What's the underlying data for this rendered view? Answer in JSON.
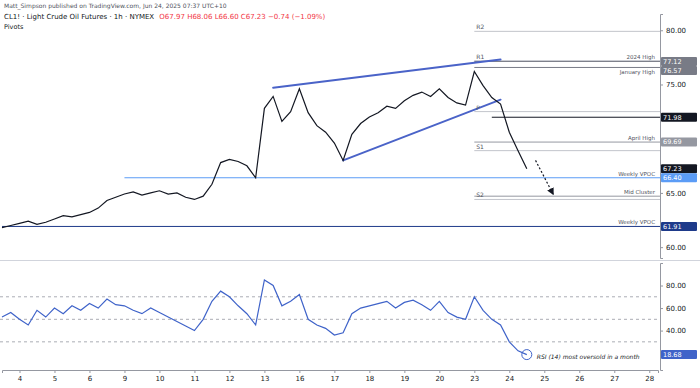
{
  "header": {
    "publisher": "Matt_Simpson published on TradingView.com, Jun 24, 2025 07:37 UTC+10",
    "symbol": "CL1! · Light Crude Oil Futures · 1h · NYMEX",
    "ohlc": "O67.97 H68.06 L66.60 C67.23 −0.74 (−1.09%)",
    "indicator": "Pivots"
  },
  "chart_data": [
    {
      "type": "line",
      "categories": [
        null,
        null,
        "4",
        null,
        null,
        null,
        "5",
        null,
        null,
        null,
        "6",
        null,
        null,
        null,
        "9",
        null,
        null,
        null,
        "10",
        null,
        null,
        null,
        "11",
        null,
        null,
        null,
        "12",
        null,
        null,
        null,
        "13",
        null,
        null,
        null,
        "16",
        null,
        null,
        null,
        "17",
        null,
        null,
        null,
        "18",
        null,
        null,
        null,
        "19",
        null,
        null,
        null,
        "20",
        null,
        null,
        null,
        "23",
        null,
        null,
        null,
        "24",
        null,
        null,
        null,
        "25",
        null,
        null,
        null,
        "26",
        null,
        null,
        null,
        "27",
        null,
        null,
        null,
        "28",
        null
      ],
      "series": [
        {
          "color": "#131722",
          "values": [
            61.8,
            62.0,
            62.2,
            62.4,
            62.1,
            62.3,
            62.6,
            62.9,
            62.8,
            63.0,
            63.2,
            63.6,
            64.3,
            64.6,
            64.9,
            65.1,
            64.8,
            65.0,
            65.2,
            64.9,
            65.0,
            64.6,
            64.4,
            64.7,
            65.8,
            67.8,
            68.1,
            67.9,
            67.5,
            66.4,
            72.8,
            73.9,
            71.6,
            72.5,
            74.6,
            72.4,
            71.2,
            70.6,
            69.6,
            68.0,
            70.4,
            71.4,
            72.0,
            72.4,
            73.0,
            72.8,
            73.5,
            74.0,
            74.3,
            73.9,
            74.6,
            73.8,
            73.3,
            73.1,
            76.2,
            74.9,
            73.8,
            73.2,
            70.6,
            68.9,
            67.23,
            null,
            null,
            null,
            null,
            null,
            null,
            null,
            null,
            null,
            null,
            null,
            null,
            null,
            null,
            null
          ]
        }
      ],
      "ylim": [
        59,
        81.5
      ],
      "yticks": [
        {
          "value": 60,
          "label": "60.00"
        },
        {
          "value": 65,
          "label": "65.00"
        },
        {
          "value": 75,
          "label": "75.00"
        },
        {
          "value": 80,
          "label": "80.00"
        }
      ],
      "tick_labels": "y",
      "grid": false,
      "last_value_label": "67.23",
      "levels": [
        {
          "label": "2024 High",
          "value": 77.12,
          "price_label": "77.12",
          "from": 54,
          "color": "#787b86"
        },
        {
          "label": "January High",
          "value": 76.57,
          "price_label": "76.57",
          "from": 54,
          "color": "#787b86"
        },
        {
          "value": 71.98,
          "price_label": "71.98",
          "from": 56,
          "color": "#131722"
        },
        {
          "label": "April High",
          "value": 69.69,
          "price_label": "69.69",
          "from": 54,
          "color": "#9598a1"
        },
        {
          "label": "Weekly VPOC",
          "value": 66.4,
          "price_label": "66.40",
          "from": 14,
          "color": "#5b9cf6"
        },
        {
          "label": "Mid Cluster",
          "value": 64.7,
          "from": 54,
          "color": "#9598a1"
        },
        {
          "label": "Weekly VPOC",
          "value": 61.91,
          "price_label": "61.91",
          "from": 0,
          "color": "#1e3a8a"
        }
      ],
      "pivots": [
        {
          "label": "R2",
          "value": 79.9,
          "from": 54
        },
        {
          "label": "R1",
          "value": 77.2,
          "from": 54
        },
        {
          "label": "P",
          "value": 72.5,
          "from": 54
        },
        {
          "label": "S1",
          "value": 68.9,
          "from": 54
        },
        {
          "label": "S2",
          "value": 64.4,
          "from": 54
        }
      ],
      "trendlines": [
        {
          "x": [
            31,
            57
          ],
          "y": [
            74.7,
            77.3
          ]
        },
        {
          "x": [
            39,
            57
          ],
          "y": [
            68.0,
            73.6
          ]
        }
      ],
      "arrow": {
        "x": [
          61,
          63
        ],
        "y": [
          68.0,
          64.9
        ]
      }
    },
    {
      "type": "line",
      "categories": [
        null,
        null,
        "4",
        null,
        null,
        null,
        "5",
        null,
        null,
        null,
        "6",
        null,
        null,
        null,
        "9",
        null,
        null,
        null,
        "10",
        null,
        null,
        null,
        "11",
        null,
        null,
        null,
        "12",
        null,
        null,
        null,
        "13",
        null,
        null,
        null,
        "16",
        null,
        null,
        null,
        "17",
        null,
        null,
        null,
        "18",
        null,
        null,
        null,
        "19",
        null,
        null,
        null,
        "20",
        null,
        null,
        null,
        "23",
        null,
        null,
        null,
        "24",
        null,
        null,
        null,
        "25",
        null,
        null,
        null,
        "26",
        null,
        null,
        null,
        "27",
        null,
        null,
        null,
        "28",
        null
      ],
      "series": [
        {
          "color": "#3f63c9",
          "values": [
            52,
            56,
            50,
            45,
            58,
            52,
            60,
            55,
            62,
            58,
            64,
            60,
            68,
            63,
            62,
            58,
            55,
            60,
            56,
            52,
            48,
            44,
            40,
            50,
            66,
            75,
            70,
            62,
            55,
            45,
            85,
            80,
            62,
            66,
            72,
            50,
            45,
            42,
            36,
            38,
            55,
            60,
            62,
            64,
            66,
            60,
            65,
            67,
            63,
            58,
            66,
            56,
            52,
            50,
            70,
            58,
            50,
            45,
            30,
            22,
            18.68,
            null,
            null,
            null,
            null,
            null,
            null,
            null,
            null,
            null,
            null,
            null,
            null,
            null,
            null,
            null
          ]
        }
      ],
      "ylim": [
        5,
        100
      ],
      "yticks": [
        {
          "value": 40,
          "label": "40.00"
        },
        {
          "value": 60,
          "label": "60.00"
        },
        {
          "value": 80,
          "label": "80.00"
        }
      ],
      "grid": false,
      "levels": [
        70,
        50,
        30
      ],
      "last_value_label": "18.68",
      "annotation": "RSI (14) most oversold in a month"
    }
  ]
}
